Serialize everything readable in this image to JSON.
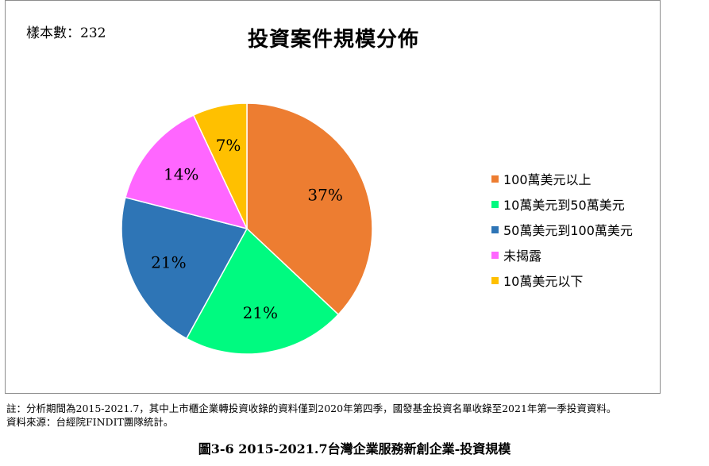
{
  "chart_data": {
    "type": "pie",
    "title": "投資案件規模分佈",
    "sample_label": "樣本數：232",
    "legend_position": "right",
    "categories": [
      "100萬美元以上",
      "10萬美元到50萬美元",
      "50萬美元到100萬美元",
      "未揭露",
      "10萬美元以下"
    ],
    "values": [
      37,
      21,
      21,
      14,
      7
    ],
    "value_labels": [
      "37%",
      "21%",
      "21%",
      "14%",
      "7%"
    ],
    "colors": [
      "#ED7D31",
      "#00FA80",
      "#2E75B6",
      "#FF66FF",
      "#FFC000"
    ],
    "slice_edge_color": "#ffffff"
  },
  "notes": {
    "line1": "註：分析期間為2015-2021.7，其中上市櫃企業轉投資收錄的資料僅到2020年第四季，國發基金投資名單收錄至2021年第一季投資資料。",
    "line2": "資料來源：台經院FINDIT團隊統計。"
  },
  "caption": "圖3-6  2015-2021.7台灣企業服務新創企業-投資規模"
}
